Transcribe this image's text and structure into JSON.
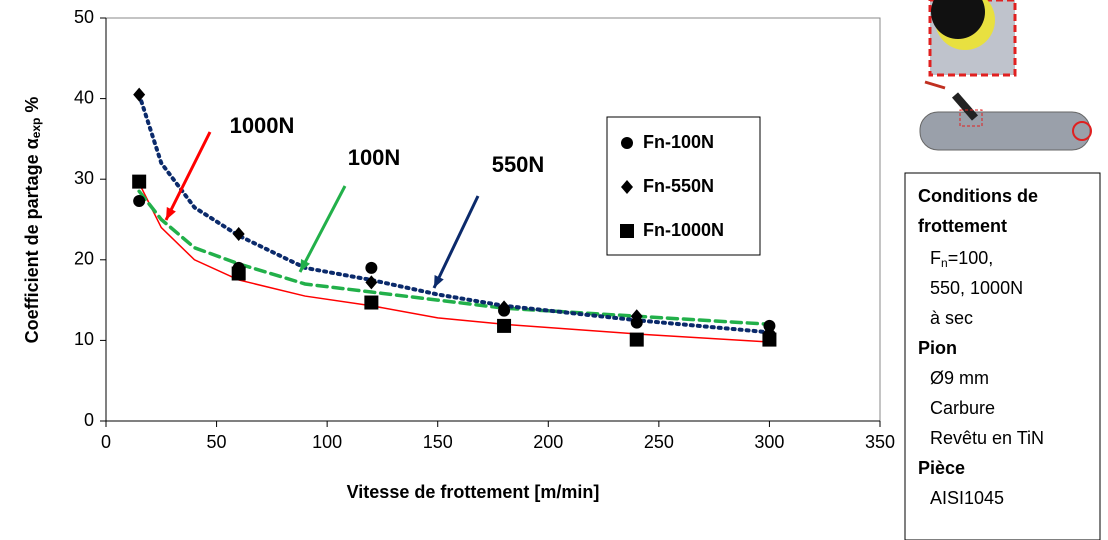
{
  "chart_data": {
    "type": "scatter",
    "ylabel": "Coefficient de partage α",
    "ylabel_sub": "exp",
    "ylabel_suffix": "%",
    "xlabel": "Vitesse de frottement [m/min]",
    "x": [
      15,
      60,
      120,
      180,
      240,
      300
    ],
    "series": [
      {
        "name": "Fn-100N",
        "color": "#000000",
        "marker": "circle",
        "values": [
          27.3,
          19,
          19,
          13.7,
          12.2,
          11.8
        ]
      },
      {
        "name": "Fn-550N",
        "color": "#000000",
        "marker": "diamond",
        "values": [
          40.5,
          23.2,
          17.2,
          14.1,
          13,
          11
        ]
      },
      {
        "name": "Fn-1000N",
        "color": "#000000",
        "marker": "square",
        "values": [
          29.7,
          18.3,
          14.7,
          11.8,
          10.1,
          10.1
        ]
      }
    ],
    "trendlines": [
      {
        "color": "#ff0000",
        "style": "solid",
        "x": [
          15,
          25,
          40,
          60,
          90,
          120,
          150,
          180,
          240,
          300
        ],
        "values": [
          29.5,
          24,
          20,
          17.5,
          15.5,
          14.3,
          12.8,
          12,
          10.8,
          9.8
        ]
      },
      {
        "color": "#22b04a",
        "style": "dashed",
        "x": [
          15,
          25,
          40,
          60,
          90,
          120,
          150,
          180,
          240,
          300
        ],
        "values": [
          28.5,
          25,
          21.5,
          19.5,
          17,
          16,
          15,
          14,
          13,
          12
        ]
      },
      {
        "color": "#0b2a6b",
        "style": "dotted",
        "x": [
          15,
          25,
          40,
          60,
          90,
          120,
          150,
          180,
          240,
          300
        ],
        "values": [
          40.5,
          32,
          26.5,
          23,
          19,
          17.5,
          15.7,
          14.3,
          12.5,
          11
        ]
      }
    ],
    "annotations": [
      {
        "text": "1000N",
        "color": "#ff0000"
      },
      {
        "text": "100N",
        "color": "#22b04a"
      },
      {
        "text": "550N",
        "color": "#0b2a6b"
      }
    ],
    "xlim": [
      0,
      350
    ],
    "xticks": [
      0,
      50,
      100,
      150,
      200,
      250,
      300,
      350
    ],
    "ylim": [
      0,
      50
    ],
    "yticks": [
      0,
      10,
      20,
      30,
      40,
      50
    ],
    "grid": false,
    "legend": "upper-right"
  },
  "conditions_panel": {
    "title": "Conditions de frottement",
    "force_symbol": "F",
    "force_sub": "n",
    "force_rest": "=100,",
    "lines_a": [
      "550, 1000N",
      "à sec"
    ],
    "pion": "Pion",
    "lines_b": [
      "Ø9 mm",
      "Carbure",
      "Revêtu en TiN"
    ],
    "piece": "Pièce",
    "lines_c": [
      "AISI1045"
    ]
  }
}
